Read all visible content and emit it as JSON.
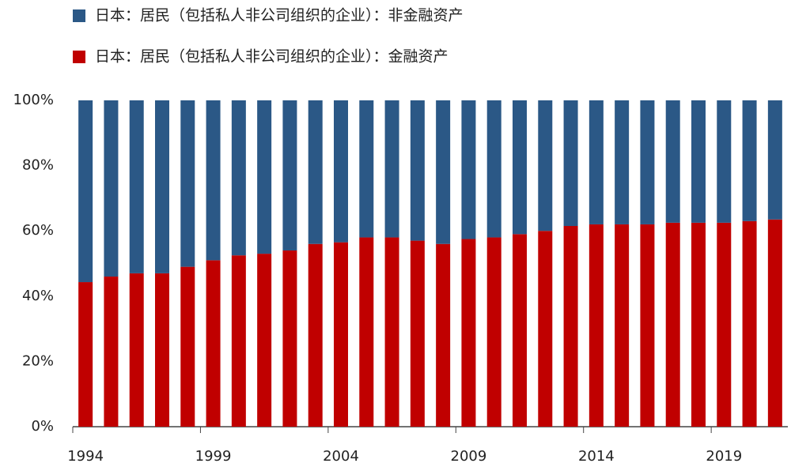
{
  "chart_data": {
    "type": "stacked_bar",
    "categories": [
      "1994",
      null,
      null,
      null,
      null,
      "1999",
      null,
      null,
      null,
      null,
      "2004",
      null,
      null,
      null,
      null,
      "2009",
      null,
      null,
      null,
      null,
      "2014",
      null,
      null,
      null,
      null,
      "2019",
      null,
      null
    ],
    "series": [
      {
        "name": "日本：居民（包括私人非公司组织的企业）：非金融资产",
        "color": "#2b5886",
        "values": [
          55.7,
          54,
          53,
          53,
          51,
          49,
          47.5,
          47,
          46,
          44,
          43.5,
          42,
          42,
          43,
          44,
          42.5,
          42,
          41,
          40,
          38.5,
          38,
          38,
          38,
          37.5,
          37.5,
          37.5,
          37,
          36.5
        ]
      },
      {
        "name": "日本：居民（包括私人非公司组织的企业）：金融资产",
        "color": "#c00000",
        "values": [
          44.3,
          46,
          47,
          47,
          49,
          51,
          52.5,
          53,
          54,
          56,
          56.5,
          58,
          58,
          57,
          56,
          57.5,
          58,
          59,
          60,
          61.5,
          62,
          62,
          62,
          62.5,
          62.5,
          62.5,
          63,
          63.5
        ]
      }
    ],
    "ylim": [
      0,
      100
    ],
    "yticks": [
      {
        "value": 0,
        "label": "0%"
      },
      {
        "value": 20,
        "label": "20%"
      },
      {
        "value": 40,
        "label": "40%"
      },
      {
        "value": 60,
        "label": "60%"
      },
      {
        "value": 80,
        "label": "80%"
      },
      {
        "value": 100,
        "label": "100%"
      }
    ]
  }
}
